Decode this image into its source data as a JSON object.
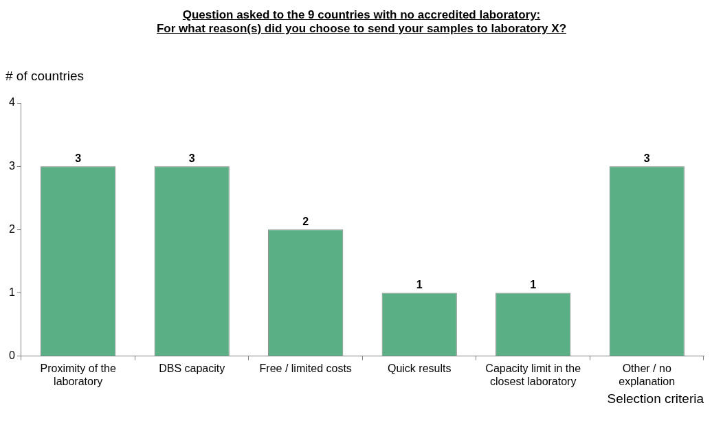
{
  "chart_data": {
    "type": "bar",
    "title": "Question asked to the 9 countries with no accredited laboratory:\nFor what reason(s) did you choose to send your samples to laboratory X?",
    "xlabel": "Selection criteria",
    "ylabel": "# of countries",
    "categories": [
      "Proximity of the laboratory",
      "DBS capacity",
      "Free / limited costs",
      "Quick results",
      "Capacity limit in the closest laboratory",
      "Other / no explanation"
    ],
    "values": [
      3,
      3,
      2,
      1,
      1,
      3
    ],
    "color": "#5aaf84",
    "ylim": [
      0,
      4
    ],
    "yticks": [
      0,
      1,
      2,
      3,
      4
    ],
    "grid": false,
    "legend": false,
    "data_labels": true
  }
}
